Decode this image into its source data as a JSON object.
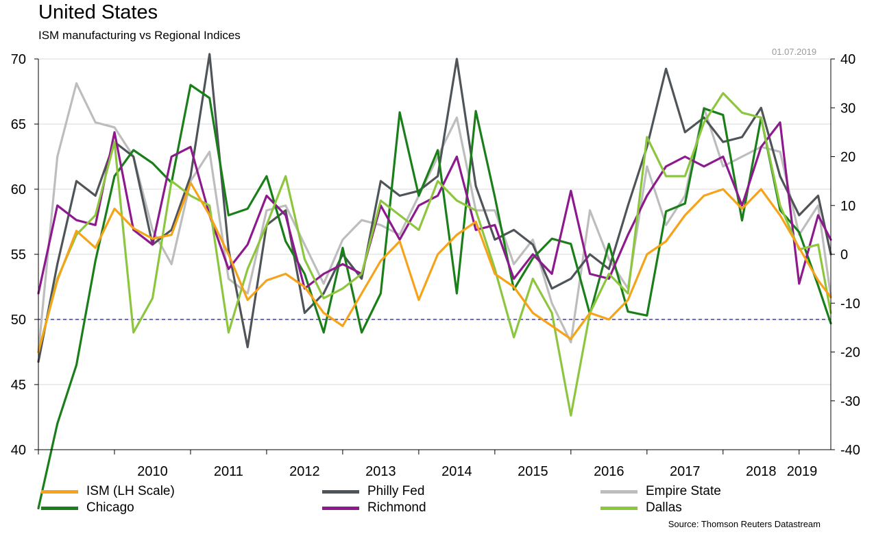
{
  "header": {
    "title": "United States",
    "subtitle": "ISM manufacturing vs Regional Indices",
    "date": "01.07.2019",
    "source": "Source: Thomson Reuters Datastream"
  },
  "chart_data": {
    "type": "line",
    "title": "United States",
    "subtitle": "ISM manufacturing vs Regional Indices",
    "x_axis": {
      "start": "2009-01",
      "end": "2019-06",
      "tick_labels": [
        "2010",
        "2011",
        "2012",
        "2013",
        "2014",
        "2015",
        "2016",
        "2017",
        "2018",
        "2019"
      ]
    },
    "y_left": {
      "min": 40,
      "max": 70,
      "ticks": [
        40,
        45,
        50,
        55,
        60,
        65,
        70
      ]
    },
    "y_right": {
      "min": -40,
      "max": 40,
      "ticks": [
        -40,
        -30,
        -20,
        -10,
        0,
        10,
        20,
        30,
        40
      ]
    },
    "reference_line": {
      "axis": "left",
      "value": 50,
      "style": "dashed",
      "color": "#3b3bb3"
    },
    "grid": "horizontal",
    "legend_position": "bottom",
    "series": [
      {
        "name": "ISM (LH Scale)",
        "axis": "left",
        "color": "#f5a31a",
        "points": [
          [
            "2009-01",
            47.5
          ],
          [
            "2009-04",
            53.0
          ],
          [
            "2009-07",
            56.8
          ],
          [
            "2009-10",
            55.5
          ],
          [
            "2010-01",
            58.5
          ],
          [
            "2010-04",
            57.0
          ],
          [
            "2010-07",
            56.2
          ],
          [
            "2010-10",
            56.5
          ],
          [
            "2011-01",
            60.5
          ],
          [
            "2011-04",
            58.0
          ],
          [
            "2011-07",
            55.0
          ],
          [
            "2011-10",
            51.5
          ],
          [
            "2012-01",
            53.0
          ],
          [
            "2012-04",
            53.5
          ],
          [
            "2012-07",
            52.5
          ],
          [
            "2012-10",
            50.5
          ],
          [
            "2013-01",
            49.5
          ],
          [
            "2013-04",
            52.0
          ],
          [
            "2013-07",
            54.5
          ],
          [
            "2013-10",
            56.0
          ],
          [
            "2014-01",
            51.5
          ],
          [
            "2014-04",
            55.0
          ],
          [
            "2014-07",
            56.5
          ],
          [
            "2014-10",
            57.5
          ],
          [
            "2015-01",
            53.5
          ],
          [
            "2015-04",
            52.5
          ],
          [
            "2015-07",
            50.5
          ],
          [
            "2015-10",
            49.5
          ],
          [
            "2016-01",
            48.5
          ],
          [
            "2016-04",
            50.5
          ],
          [
            "2016-07",
            50.0
          ],
          [
            "2016-10",
            51.5
          ],
          [
            "2017-01",
            55.0
          ],
          [
            "2017-04",
            56.0
          ],
          [
            "2017-07",
            58.0
          ],
          [
            "2017-10",
            59.5
          ],
          [
            "2018-01",
            60.0
          ],
          [
            "2018-04",
            58.5
          ],
          [
            "2018-07",
            60.0
          ],
          [
            "2018-10",
            58.0
          ],
          [
            "2019-01",
            55.5
          ],
          [
            "2019-04",
            53.0
          ],
          [
            "2019-06",
            51.7
          ]
        ]
      },
      {
        "name": "Philly Fed",
        "axis": "right",
        "color": "#4f5459",
        "points": [
          [
            "2009-01",
            -22
          ],
          [
            "2009-04",
            -2
          ],
          [
            "2009-07",
            15
          ],
          [
            "2009-10",
            12
          ],
          [
            "2010-01",
            23
          ],
          [
            "2010-04",
            20
          ],
          [
            "2010-07",
            2
          ],
          [
            "2010-10",
            5
          ],
          [
            "2011-01",
            16
          ],
          [
            "2011-04",
            41
          ],
          [
            "2011-07",
            1
          ],
          [
            "2011-10",
            -19
          ],
          [
            "2012-01",
            6
          ],
          [
            "2012-04",
            9
          ],
          [
            "2012-07",
            -12
          ],
          [
            "2012-10",
            -8
          ],
          [
            "2013-01",
            0
          ],
          [
            "2013-04",
            -5
          ],
          [
            "2013-07",
            15
          ],
          [
            "2013-10",
            12
          ],
          [
            "2014-01",
            13
          ],
          [
            "2014-04",
            16
          ],
          [
            "2014-07",
            40
          ],
          [
            "2014-10",
            14
          ],
          [
            "2015-01",
            3
          ],
          [
            "2015-04",
            5
          ],
          [
            "2015-07",
            2
          ],
          [
            "2015-10",
            -7
          ],
          [
            "2016-01",
            -5
          ],
          [
            "2016-04",
            0
          ],
          [
            "2016-07",
            -3
          ],
          [
            "2016-10",
            10
          ],
          [
            "2017-01",
            22
          ],
          [
            "2017-04",
            38
          ],
          [
            "2017-07",
            25
          ],
          [
            "2017-10",
            28
          ],
          [
            "2018-01",
            23
          ],
          [
            "2018-04",
            24
          ],
          [
            "2018-07",
            30
          ],
          [
            "2018-10",
            16
          ],
          [
            "2019-01",
            8
          ],
          [
            "2019-04",
            12
          ],
          [
            "2019-06",
            0
          ]
        ]
      },
      {
        "name": "Empire State",
        "axis": "right",
        "color": "#bdbdbd",
        "points": [
          [
            "2009-01",
            -20
          ],
          [
            "2009-04",
            20
          ],
          [
            "2009-07",
            35
          ],
          [
            "2009-10",
            27
          ],
          [
            "2010-01",
            26
          ],
          [
            "2010-04",
            20
          ],
          [
            "2010-07",
            5
          ],
          [
            "2010-10",
            -2
          ],
          [
            "2011-01",
            15
          ],
          [
            "2011-04",
            21
          ],
          [
            "2011-07",
            -5
          ],
          [
            "2011-10",
            -8
          ],
          [
            "2012-01",
            9
          ],
          [
            "2012-04",
            10
          ],
          [
            "2012-07",
            2
          ],
          [
            "2012-10",
            -6
          ],
          [
            "2013-01",
            3
          ],
          [
            "2013-04",
            7
          ],
          [
            "2013-07",
            6
          ],
          [
            "2013-10",
            4
          ],
          [
            "2014-01",
            12
          ],
          [
            "2014-04",
            20
          ],
          [
            "2014-07",
            28
          ],
          [
            "2014-10",
            9
          ],
          [
            "2015-01",
            9
          ],
          [
            "2015-04",
            -2
          ],
          [
            "2015-07",
            3
          ],
          [
            "2015-10",
            -10
          ],
          [
            "2016-01",
            -18
          ],
          [
            "2016-04",
            9
          ],
          [
            "2016-07",
            -1
          ],
          [
            "2016-10",
            -7
          ],
          [
            "2017-01",
            18
          ],
          [
            "2017-04",
            6
          ],
          [
            "2017-07",
            12
          ],
          [
            "2017-10",
            30
          ],
          [
            "2018-01",
            18
          ],
          [
            "2018-04",
            20
          ],
          [
            "2018-07",
            22
          ],
          [
            "2018-10",
            21
          ],
          [
            "2019-01",
            4
          ],
          [
            "2019-04",
            10
          ],
          [
            "2019-06",
            -8.6
          ]
        ]
      },
      {
        "name": "Chicago",
        "axis": "left",
        "color": "#1a7f1a",
        "points": [
          [
            "2009-01",
            35.5
          ],
          [
            "2009-04",
            42.0
          ],
          [
            "2009-07",
            46.5
          ],
          [
            "2009-10",
            54.5
          ],
          [
            "2010-01",
            61.0
          ],
          [
            "2010-04",
            63.0
          ],
          [
            "2010-07",
            62.0
          ],
          [
            "2010-10",
            60.5
          ],
          [
            "2011-01",
            68.0
          ],
          [
            "2011-04",
            67.0
          ],
          [
            "2011-07",
            58.0
          ],
          [
            "2011-10",
            58.5
          ],
          [
            "2012-01",
            61.0
          ],
          [
            "2012-04",
            56.0
          ],
          [
            "2012-07",
            53.5
          ],
          [
            "2012-10",
            49.0
          ],
          [
            "2013-01",
            55.5
          ],
          [
            "2013-04",
            49.0
          ],
          [
            "2013-07",
            52.0
          ],
          [
            "2013-10",
            65.9
          ],
          [
            "2014-01",
            59.5
          ],
          [
            "2014-04",
            63.0
          ],
          [
            "2014-07",
            52.0
          ],
          [
            "2014-10",
            66.0
          ],
          [
            "2015-01",
            59.4
          ],
          [
            "2015-04",
            52.3
          ],
          [
            "2015-07",
            54.7
          ],
          [
            "2015-10",
            56.2
          ],
          [
            "2016-01",
            55.8
          ],
          [
            "2016-04",
            50.4
          ],
          [
            "2016-07",
            55.8
          ],
          [
            "2016-10",
            50.6
          ],
          [
            "2017-01",
            50.3
          ],
          [
            "2017-04",
            58.3
          ],
          [
            "2017-07",
            58.9
          ],
          [
            "2017-10",
            66.2
          ],
          [
            "2018-01",
            65.7
          ],
          [
            "2018-04",
            57.6
          ],
          [
            "2018-07",
            65.5
          ],
          [
            "2018-10",
            58.4
          ],
          [
            "2019-01",
            56.7
          ],
          [
            "2019-04",
            52.6
          ],
          [
            "2019-06",
            49.7
          ]
        ]
      },
      {
        "name": "Richmond",
        "axis": "right",
        "color": "#8c1a8c",
        "points": [
          [
            "2009-01",
            -8
          ],
          [
            "2009-04",
            10
          ],
          [
            "2009-07",
            7
          ],
          [
            "2009-10",
            6
          ],
          [
            "2010-01",
            25
          ],
          [
            "2010-04",
            5
          ],
          [
            "2010-07",
            2
          ],
          [
            "2010-10",
            20
          ],
          [
            "2011-01",
            22
          ],
          [
            "2011-04",
            8
          ],
          [
            "2011-07",
            -3
          ],
          [
            "2011-10",
            2
          ],
          [
            "2012-01",
            12
          ],
          [
            "2012-04",
            8
          ],
          [
            "2012-07",
            -7
          ],
          [
            "2012-10",
            -4
          ],
          [
            "2013-01",
            -2
          ],
          [
            "2013-04",
            -4
          ],
          [
            "2013-07",
            10
          ],
          [
            "2013-10",
            3
          ],
          [
            "2014-01",
            10
          ],
          [
            "2014-04",
            12
          ],
          [
            "2014-07",
            20
          ],
          [
            "2014-10",
            5
          ],
          [
            "2015-01",
            6
          ],
          [
            "2015-04",
            -5
          ],
          [
            "2015-07",
            0
          ],
          [
            "2015-10",
            -4
          ],
          [
            "2016-01",
            13
          ],
          [
            "2016-04",
            -4
          ],
          [
            "2016-07",
            -5
          ],
          [
            "2016-10",
            4
          ],
          [
            "2017-01",
            12
          ],
          [
            "2017-04",
            18
          ],
          [
            "2017-07",
            20
          ],
          [
            "2017-10",
            18
          ],
          [
            "2018-01",
            20
          ],
          [
            "2018-04",
            10
          ],
          [
            "2018-07",
            22
          ],
          [
            "2018-10",
            27
          ],
          [
            "2019-01",
            -6
          ],
          [
            "2019-04",
            8
          ],
          [
            "2019-06",
            3
          ]
        ]
      },
      {
        "name": "Dallas",
        "axis": "right",
        "color": "#8cc63f",
        "points": [
          [
            "2009-01",
            -20
          ],
          [
            "2009-04",
            -5
          ],
          [
            "2009-07",
            4
          ],
          [
            "2009-10",
            8
          ],
          [
            "2010-01",
            23
          ],
          [
            "2010-04",
            -16
          ],
          [
            "2010-07",
            -9
          ],
          [
            "2010-10",
            15
          ],
          [
            "2011-01",
            12
          ],
          [
            "2011-04",
            10
          ],
          [
            "2011-07",
            -16
          ],
          [
            "2011-10",
            -3
          ],
          [
            "2012-01",
            6
          ],
          [
            "2012-04",
            16
          ],
          [
            "2012-07",
            -1
          ],
          [
            "2012-10",
            -9
          ],
          [
            "2013-01",
            -7
          ],
          [
            "2013-04",
            -4
          ],
          [
            "2013-07",
            11
          ],
          [
            "2013-10",
            8
          ],
          [
            "2014-01",
            5
          ],
          [
            "2014-04",
            15
          ],
          [
            "2014-07",
            11
          ],
          [
            "2014-10",
            9
          ],
          [
            "2015-01",
            -3
          ],
          [
            "2015-04",
            -17
          ],
          [
            "2015-07",
            -5
          ],
          [
            "2015-10",
            -12
          ],
          [
            "2016-01",
            -33
          ],
          [
            "2016-04",
            -12
          ],
          [
            "2016-07",
            -4
          ],
          [
            "2016-10",
            -8
          ],
          [
            "2017-01",
            24
          ],
          [
            "2017-04",
            16
          ],
          [
            "2017-07",
            16
          ],
          [
            "2017-10",
            27
          ],
          [
            "2018-01",
            33
          ],
          [
            "2018-04",
            29
          ],
          [
            "2018-07",
            28
          ],
          [
            "2018-10",
            10
          ],
          [
            "2019-01",
            1
          ],
          [
            "2019-04",
            2
          ],
          [
            "2019-06",
            -12
          ]
        ]
      }
    ]
  }
}
